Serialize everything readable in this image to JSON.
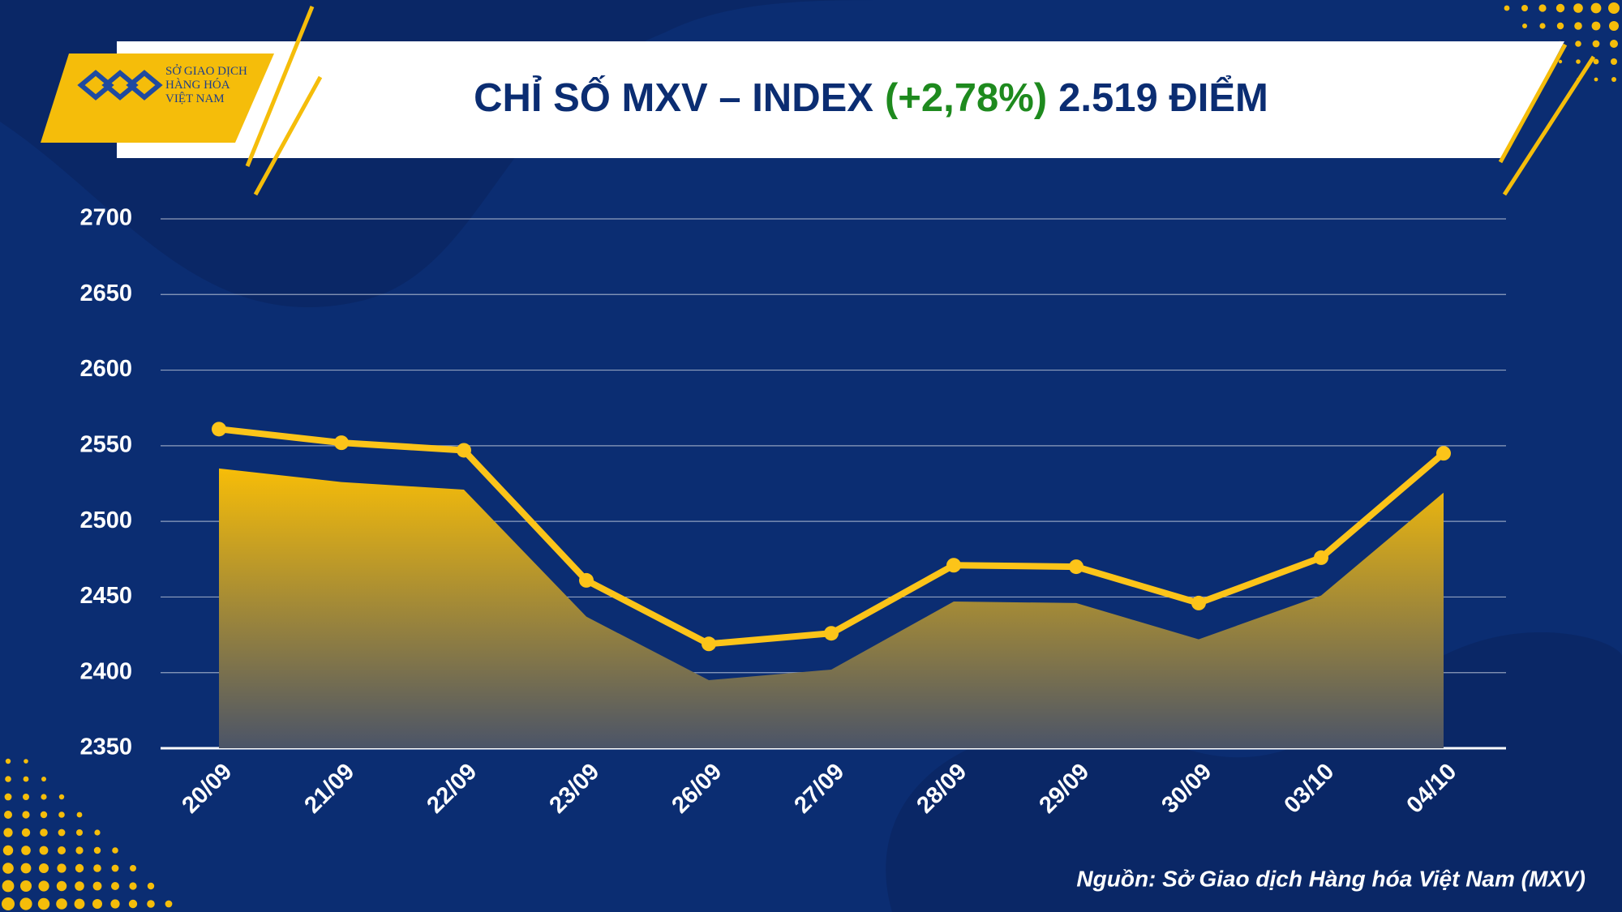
{
  "logo": [
    "SỞ GIAO DỊCH",
    "HÀNG HÓA",
    "VIỆT NAM"
  ],
  "chart_data": {
    "type": "line",
    "title": "CHỈ SỐ MXV – INDEX",
    "title_change": "(+2,78%)",
    "title_value": "2.519 ĐIỂM",
    "source": "Nguồn: Sở Giao dịch Hàng hóa Việt Nam (MXV)",
    "categories": [
      "20/09",
      "21/09",
      "22/09",
      "23/09",
      "26/09",
      "27/09",
      "28/09",
      "29/09",
      "30/09",
      "03/10",
      "04/10"
    ],
    "series": [
      {
        "type": "area",
        "color": "#f5bd0a",
        "values": [
          2535,
          2526,
          2521,
          2437,
          2395,
          2402,
          2447,
          2446,
          2422,
          2451,
          2519
        ]
      },
      {
        "type": "line",
        "color": "#fcc419",
        "values": [
          2561,
          2552,
          2547,
          2461,
          2419,
          2426,
          2471,
          2470,
          2446,
          2476,
          2545
        ]
      }
    ],
    "ylim": [
      2350,
      2700
    ],
    "yticks": [
      2350,
      2400,
      2450,
      2500,
      2550,
      2600,
      2650,
      2700
    ],
    "grid": true
  }
}
